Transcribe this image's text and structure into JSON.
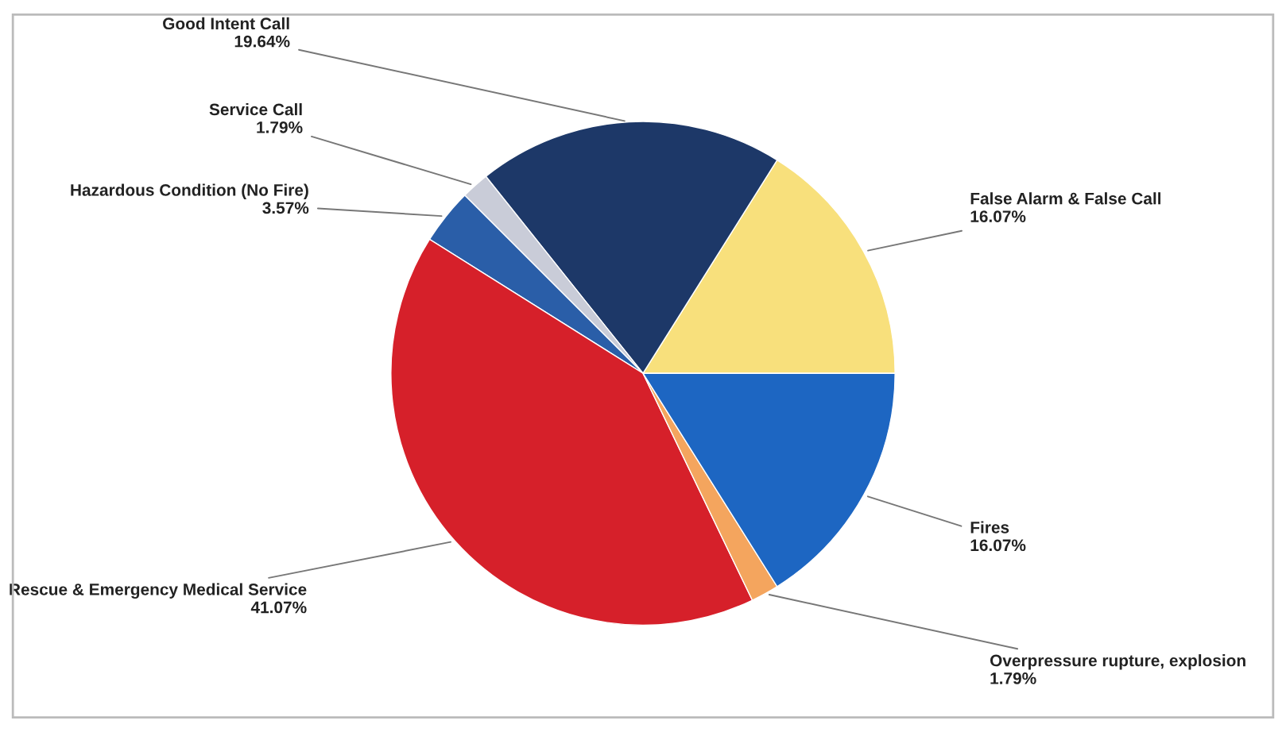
{
  "chart_data": {
    "type": "pie",
    "categories": [
      "False Alarm & False Call",
      "Good Intent Call",
      "Service Call",
      "Hazardous Condition (No Fire)",
      "Rescue & Emergency Medical Service",
      "Overpressure rupture, explosion",
      "Fires"
    ],
    "values": [
      16.07,
      19.64,
      1.79,
      3.57,
      41.07,
      1.79,
      16.07
    ],
    "value_labels": [
      "16.07%",
      "19.64%",
      "1.79%",
      "3.57%",
      "41.07%",
      "1.79%",
      "16.07%"
    ],
    "colors": [
      "#f8e07c",
      "#1d3868",
      "#c9ccd8",
      "#2a5ea8",
      "#d6202a",
      "#f4a55e",
      "#1d66c2"
    ],
    "legend": false
  }
}
